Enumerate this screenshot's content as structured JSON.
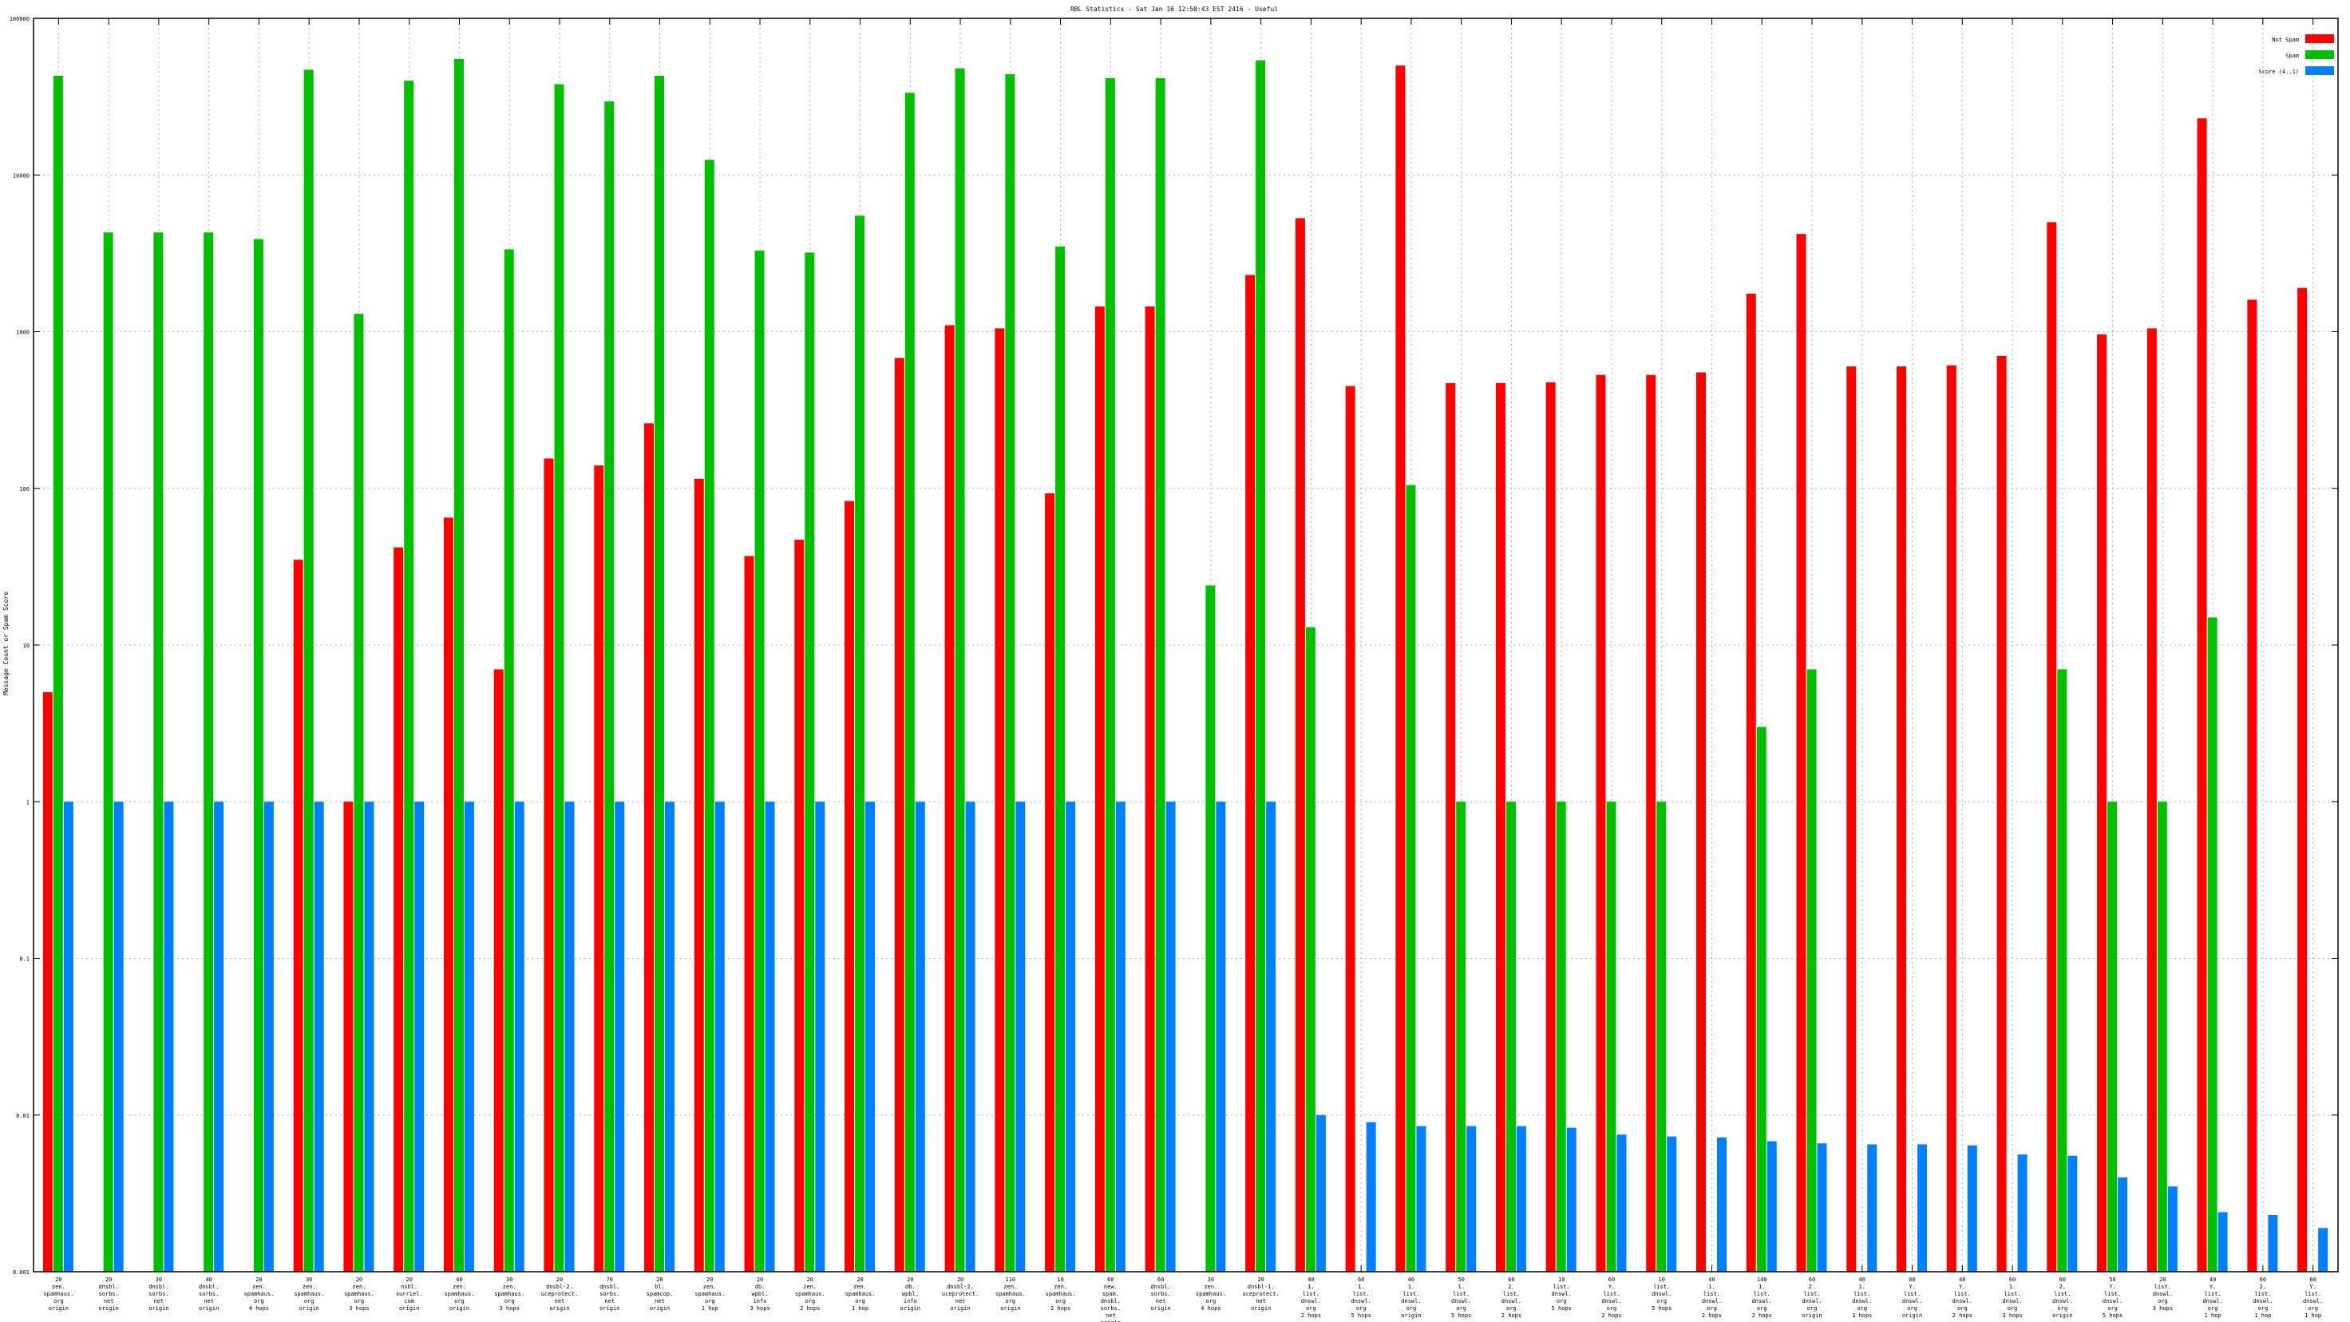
{
  "chart_data": {
    "type": "bar",
    "title": "RBL Statistics - Sat Jan 16 12:50:43 EST 2416 - Useful",
    "ylabel": "Message Count or Spam Score",
    "xlabel": "",
    "yscale": "log",
    "ylim": [
      0.001,
      100000
    ],
    "yticks": [
      "0.001",
      "0.01",
      "0.1",
      "1",
      "10",
      "100",
      "1000",
      "10000",
      "100000"
    ],
    "grid": true,
    "legend_position": "top-right",
    "categories": [
      [
        "20",
        "zen.",
        "spamhaus.",
        "org",
        "origin"
      ],
      [
        "20",
        "dnsbl.",
        "sorbs.",
        "net",
        "origin"
      ],
      [
        "30",
        "dnsbl.",
        "sorbs.",
        "net",
        "origin"
      ],
      [
        "40",
        "dnsbl.",
        "sorbs.",
        "net",
        "origin"
      ],
      [
        "20",
        "zen.",
        "spamhaus.",
        "org",
        "4 hops"
      ],
      [
        "30",
        "zen.",
        "spamhaus.",
        "org",
        "origin"
      ],
      [
        "20",
        "zen.",
        "spamhaus.",
        "org",
        "3 hops"
      ],
      [
        "20",
        "nsbl.",
        "surriel.",
        "com",
        "origin"
      ],
      [
        "40",
        "zen.",
        "spamhaus.",
        "org",
        "origin"
      ],
      [
        "30",
        "zen.",
        "spamhaus.",
        "org",
        "3 hops"
      ],
      [
        "20",
        "dnsbl-2.",
        "uceprotect.",
        "net",
        "origin"
      ],
      [
        "70",
        "dnsbl.",
        "sorbs.",
        "net",
        "origin"
      ],
      [
        "20",
        "bl.",
        "spamcop.",
        "net",
        "origin"
      ],
      [
        "20",
        "zen.",
        "spamhaus.",
        "org",
        "1 hop"
      ],
      [
        "20",
        "db.",
        "wpbl.",
        "info",
        "3 hops"
      ],
      [
        "20",
        "zen.",
        "spamhaus.",
        "org",
        "2 hops"
      ],
      [
        "20",
        "zen.",
        "spamhaus.",
        "org",
        "1 hop"
      ],
      [
        "20",
        "db.",
        "wpbl.",
        "info",
        "origin"
      ],
      [
        "20",
        "dnsbl-2.",
        "uceprotect.",
        "net",
        "origin"
      ],
      [
        "110",
        "zen.",
        "spamhaus.",
        "org",
        "origin"
      ],
      [
        "10",
        "zen.",
        "spamhaus.",
        "org",
        "2 hops"
      ],
      [
        "60",
        "new.",
        "spam.",
        "dnsbl.",
        "sorbs.",
        "net",
        "origin"
      ],
      [
        "60",
        "dnsbl.",
        "sorbs.",
        "net",
        "origin"
      ],
      [
        "30",
        "zen.",
        "spamhaus.",
        "org",
        "4 hops"
      ],
      [
        "20",
        "dnsbl-1.",
        "uceprotect.",
        "net",
        "origin"
      ],
      [
        "40",
        "1.",
        "list.",
        "dnswl.",
        "org",
        "2 hops"
      ],
      [
        "60",
        "1.",
        "list.",
        "dnswl.",
        "org",
        "5 hops"
      ],
      [
        "40",
        "1.",
        "list.",
        "dnswl.",
        "org",
        "origin"
      ],
      [
        "50",
        "1.",
        "list.",
        "dnswl.",
        "org",
        "5 hops"
      ],
      [
        "60",
        "2.",
        "list.",
        "dnswl.",
        "org",
        "2 hops"
      ],
      [
        "10",
        "list.",
        "dnswl.",
        "org",
        "5 hops"
      ],
      [
        "60",
        "Y.",
        "list.",
        "dnswl.",
        "org",
        "2 hops"
      ],
      [
        "10",
        "list.",
        "dnswl.",
        "org",
        "5 hops"
      ],
      [
        "40",
        "1.",
        "list.",
        "dnswl.",
        "org",
        "2 hops"
      ],
      [
        "140",
        "1.",
        "list.",
        "dnswl.",
        "org",
        "2 hops"
      ],
      [
        "60",
        "2.",
        "list.",
        "dnswl.",
        "org",
        "origin"
      ],
      [
        "40",
        "1.",
        "list.",
        "dnswl.",
        "org",
        "3 hops"
      ],
      [
        "60",
        "Y.",
        "list.",
        "dnswl.",
        "org",
        "origin"
      ],
      [
        "40",
        "Y.",
        "list.",
        "dnswl.",
        "org",
        "2 hops"
      ],
      [
        "60",
        "1.",
        "list.",
        "dnswl.",
        "org",
        "3 hops"
      ],
      [
        "60",
        "2.",
        "list.",
        "dnswl.",
        "org",
        "origin"
      ],
      [
        "50",
        "Y.",
        "list.",
        "dnswl.",
        "org",
        "5 hops"
      ],
      [
        "20",
        "list.",
        "dnswl.",
        "org",
        "3 hops"
      ],
      [
        "40",
        "Y.",
        "list.",
        "dnswl.",
        "org",
        "1 hop"
      ],
      [
        "60",
        "2.",
        "list.",
        "dnswl.",
        "org",
        "1 hop"
      ],
      [
        "60",
        "Y.",
        "list.",
        "dnswl.",
        "org",
        "1 hop"
      ]
    ],
    "series": [
      {
        "name": "Not Spam",
        "color": "#ff0000",
        "values": [
          5,
          null,
          null,
          null,
          null,
          35,
          1,
          42,
          65,
          7,
          155,
          140,
          260,
          115,
          37,
          47,
          83,
          680,
          1100,
          1050,
          93,
          1450,
          1450,
          null,
          2300,
          5300,
          450,
          50000,
          470,
          470,
          475,
          530,
          530,
          550,
          1750,
          4200,
          600,
          600,
          610,
          700,
          5000,
          960,
          1050,
          23000,
          1600,
          1900
        ]
      },
      {
        "name": "Spam",
        "color": "#00c000",
        "values": [
          43000,
          4300,
          4300,
          4300,
          3900,
          47000,
          1300,
          40000,
          55000,
          3350,
          38000,
          29500,
          43000,
          12500,
          3300,
          3200,
          5500,
          33500,
          48000,
          44000,
          3500,
          41500,
          41500,
          24,
          54000,
          13,
          null,
          105,
          1,
          1,
          1,
          1,
          1,
          null,
          3,
          7,
          null,
          null,
          null,
          null,
          7,
          1,
          1,
          15,
          null,
          null
        ]
      },
      {
        "name": "Score (4..1)",
        "color": "#0080ff",
        "values": [
          1,
          1,
          1,
          1,
          1,
          1,
          1,
          1,
          1,
          1,
          1,
          1,
          1,
          1,
          1,
          1,
          1,
          1,
          1,
          1,
          1,
          1,
          1,
          1,
          1,
          0.01,
          0.009,
          0.0085,
          0.0085,
          0.0085,
          0.0083,
          0.0075,
          0.0073,
          0.0072,
          0.0068,
          0.0066,
          0.0065,
          0.0065,
          0.0064,
          0.0056,
          0.0055,
          0.004,
          0.0035,
          0.0024,
          0.0023,
          0.0019
        ]
      }
    ]
  }
}
